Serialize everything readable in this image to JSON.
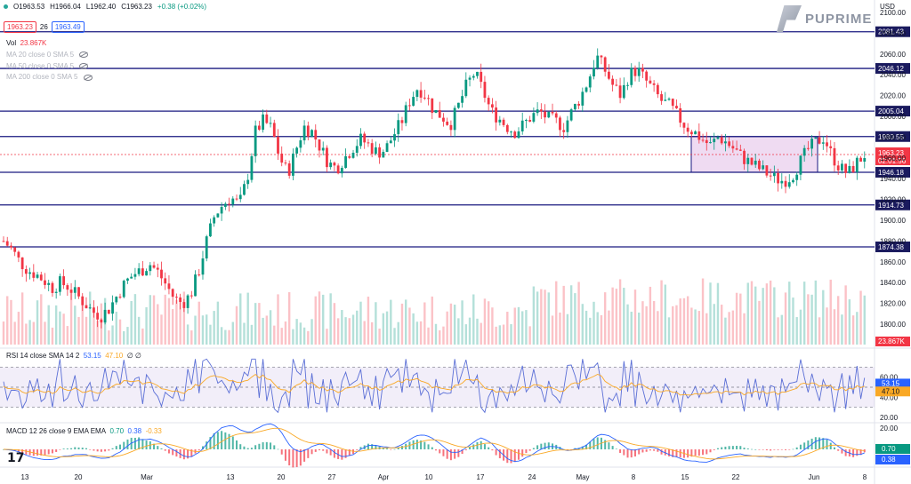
{
  "header": {
    "open": "O1963.53",
    "high": "H1966.04",
    "low": "L1962.40",
    "close": "C1963.23",
    "change": "+0.38 (+0.02%)",
    "bid_tag": "1963.23",
    "spread": "26",
    "ask_tag": "1963.49",
    "currency": "USD"
  },
  "indicators": {
    "vol_label": "Vol",
    "vol_value": "23.867K",
    "ma20": "MA 20 close 0 SMA 5",
    "ma50": "MA 50 close 0 SMA 5",
    "ma200": "MA 200 close 0 SMA 5",
    "rsi_label": "RSI 14 close SMA 14 2",
    "rsi_v1": "53.15",
    "rsi_v2": "47.10",
    "rsi_v3": "∅ ∅",
    "macd_label": "MACD 12 26 close 9 EMA EMA",
    "macd_v1": "0.70",
    "macd_v2": "0.38",
    "macd_v3": "-0.33"
  },
  "brand": {
    "name": "PUPRIME",
    "tv": "17"
  },
  "colors": {
    "up": "#089981",
    "down": "#f23645",
    "level": "#1a1a80",
    "rsi": "#5b6fd6",
    "signal": "#f9a825",
    "box": "#e1bee7"
  },
  "chart_data": [
    {
      "type": "candlestick",
      "title": "",
      "ylim": [
        1780,
        2100
      ],
      "y_ticks": [
        1800,
        1820,
        1840,
        1860,
        1880,
        1900,
        1920,
        1940,
        1960,
        1980,
        2000,
        2020,
        2040,
        2060,
        2080,
        2100
      ],
      "x_ticks": [
        "13",
        "20",
        "Mar",
        "13",
        "20",
        "27",
        "Apr",
        "10",
        "17",
        "24",
        "May",
        "8",
        "15",
        "22",
        "Jun",
        "8"
      ],
      "levels": [
        2081.43,
        2046.12,
        2005.04,
        1980.55,
        1946.18,
        1914.73,
        1874.38
      ],
      "current_price": 1963.23,
      "current_countdown": "02:01:56",
      "last_volume_label": "23.867K",
      "close_path": [
        1880,
        1872,
        1860,
        1852,
        1848,
        1842,
        1835,
        1840,
        1836,
        1828,
        1820,
        1812,
        1808,
        1815,
        1828,
        1840,
        1848,
        1852,
        1858,
        1850,
        1838,
        1825,
        1820,
        1828,
        1850,
        1880,
        1905,
        1915,
        1922,
        1915,
        1940,
        1985,
        1996,
        1988,
        1960,
        1945,
        1968,
        1990,
        1985,
        1970,
        1955,
        1950,
        1960,
        1970,
        1978,
        1972,
        1965,
        1968,
        1982,
        1995,
        2015,
        2028,
        2020,
        2005,
        2000,
        1992,
        2010,
        2030,
        2042,
        2025,
        2005,
        1998,
        1990,
        1985,
        1992,
        2000,
        2005,
        1998,
        1995,
        1990,
        2005,
        2018,
        2035,
        2058,
        2045,
        2030,
        2020,
        2040,
        2045,
        2035,
        2025,
        2015,
        2010,
        2000,
        1990,
        1985,
        1978,
        1972,
        1980,
        1975,
        1968,
        1960,
        1955,
        1950,
        1945,
        1940,
        1938,
        1942,
        1955,
        1968,
        1975,
        1980,
        1962,
        1950,
        1945,
        1955,
        1963
      ],
      "rsi_ylim": [
        20,
        80
      ],
      "rsi_ticks": [
        20,
        40,
        60
      ],
      "rsi_band": [
        30,
        70
      ],
      "rsi_value": 53.15,
      "rsi_signal": 47.1,
      "macd_ticks": [
        20
      ],
      "macd_value": 0.7,
      "macd_signal": 0.38,
      "macd_hist": -0.33
    }
  ]
}
